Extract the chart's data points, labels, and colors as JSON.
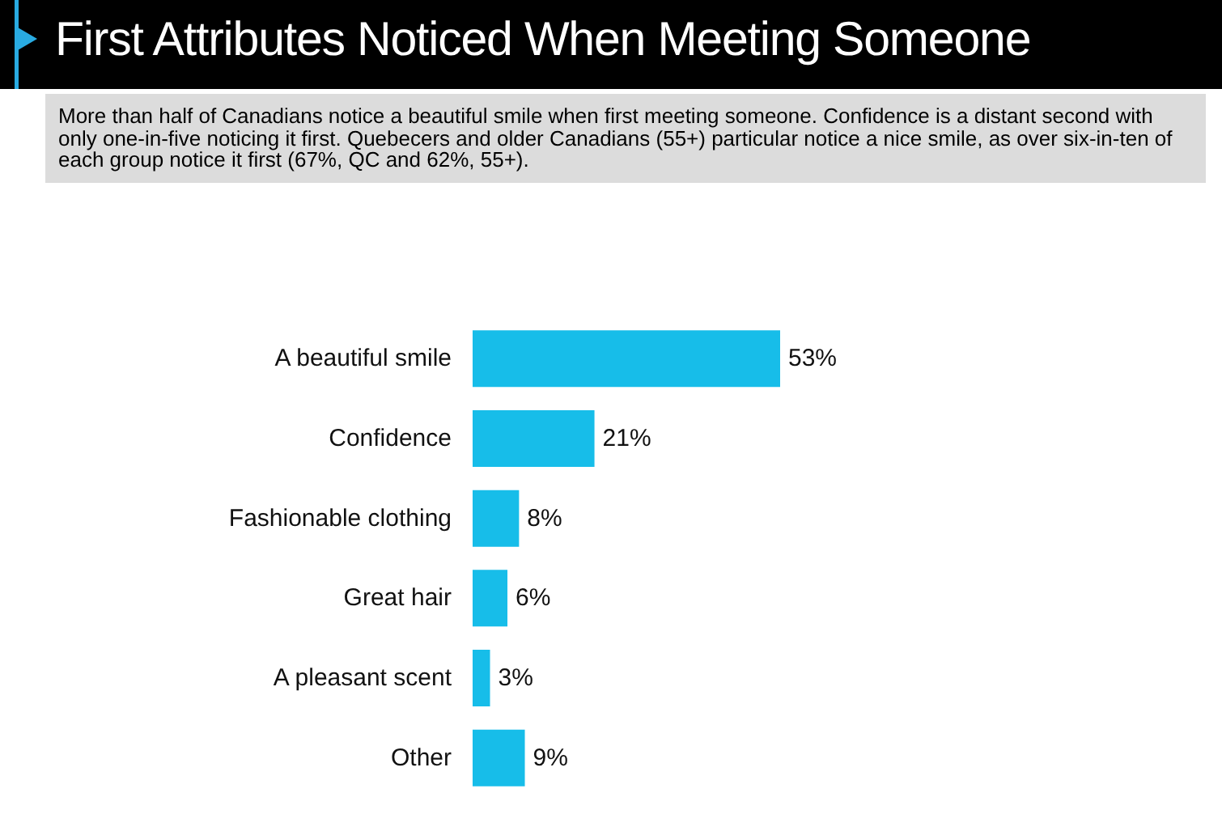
{
  "chart_data": {
    "type": "bar",
    "orientation": "horizontal",
    "title": "First Attributes Noticed When Meeting Someone",
    "subtitle": "More than half of Canadians notice a beautiful smile when first meeting someone. Confidence is a distant second with only one-in-five noticing it first. Quebecers and older Canadians (55+) particular notice a nice smile, as over six-in-ten of each group notice it first (67%, QC and 62%, 55+).",
    "categories": [
      "A beautiful smile",
      "Confidence",
      "Fashionable clothing",
      "Great hair",
      "A pleasant scent",
      "Other"
    ],
    "values": [
      53,
      21,
      8,
      6,
      3,
      9
    ],
    "value_labels": [
      "53%",
      "21%",
      "8%",
      "6%",
      "3%",
      "9%"
    ],
    "color": "#17bde9"
  }
}
